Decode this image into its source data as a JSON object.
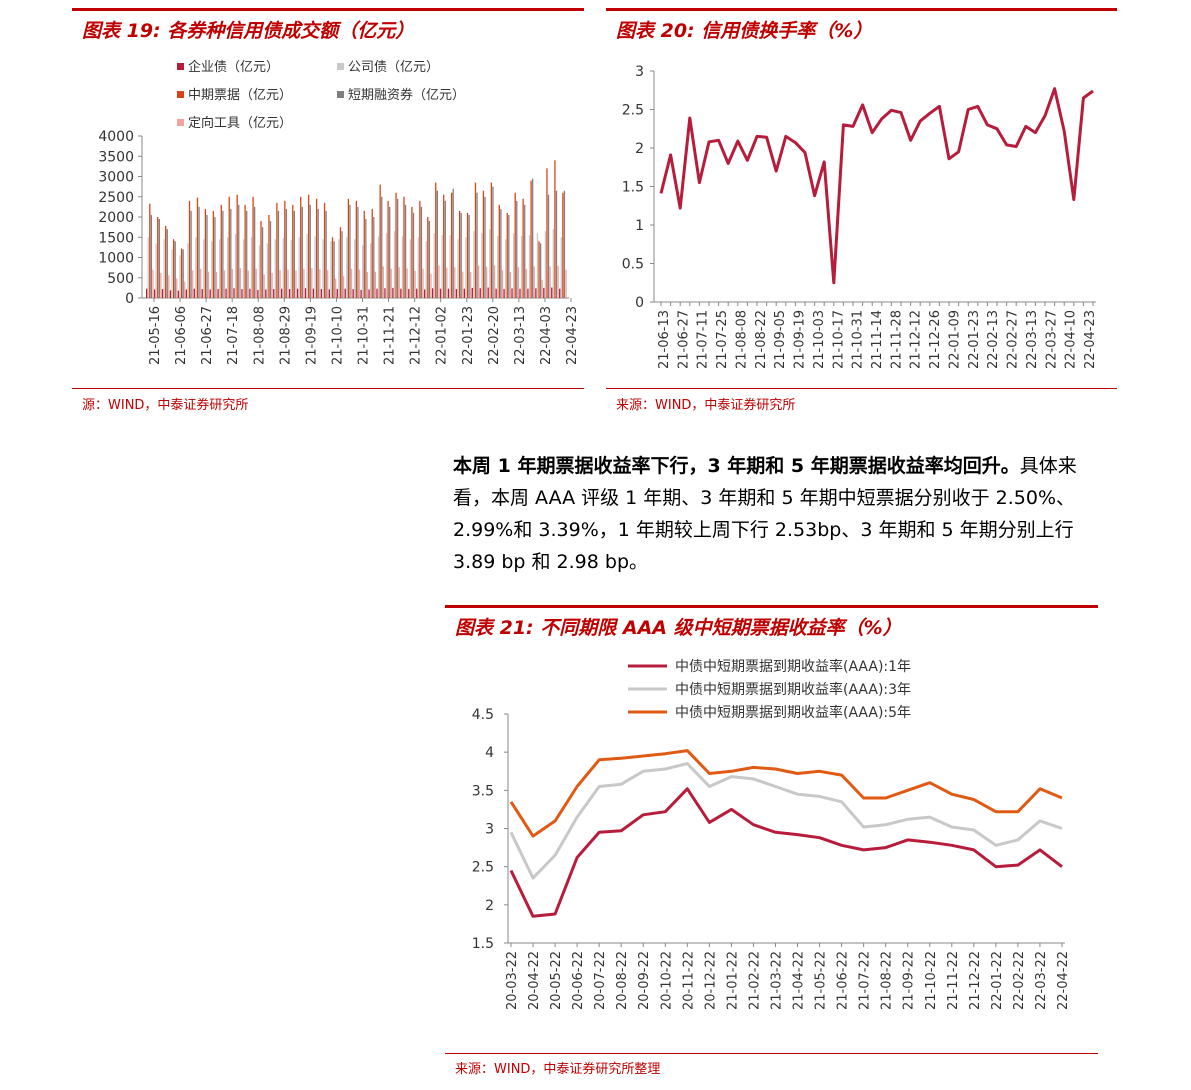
{
  "charts": [
    {
      "title": "图表 19:  各券种信用债成交额（亿元）",
      "source": "源：WIND，中泰证券研究所",
      "chart_data": {
        "type": "bar",
        "title": "图表 19:  各券种信用债成交额（亿元）",
        "ylim": [
          0,
          4000
        ],
        "yticks": [
          0,
          500,
          1000,
          1500,
          2000,
          2500,
          3000,
          3500,
          4000
        ],
        "tick_labels_x": [
          "21-05-16",
          "21-06-06",
          "21-06-27",
          "21-07-18",
          "21-08-08",
          "21-08-29",
          "21-09-19",
          "21-10-10",
          "21-10-31",
          "21-11-21",
          "21-12-12",
          "22-01-02",
          "22-01-23",
          "22-02-20",
          "22-03-13",
          "22-04-03",
          "22-04-23"
        ],
        "legend": [
          "企业债（亿元）",
          "公司债（亿元）",
          "中期票据（亿元）",
          "短期融资券（亿元）",
          "定向工具（亿元）"
        ],
        "colors": [
          "#b71c3b",
          "#c8c8c8",
          "#d84315",
          "#7f7f7f",
          "#f4a39a"
        ],
        "series": [
          {
            "name": "企业债（亿元）",
            "values": [
              230,
              210,
              220,
              190,
              180,
              210,
              230,
              220,
              210,
              220,
              230,
              240,
              220,
              230,
              200,
              210,
              220,
              230,
              220,
              230,
              240,
              230,
              220,
              210,
              220,
              230,
              220,
              200,
              210,
              230,
              240,
              250,
              230,
              220,
              230,
              210,
              240,
              230,
              230,
              220,
              230,
              250,
              240,
              260,
              230,
              220,
              240,
              230,
              230,
              240,
              250,
              260,
              230
            ]
          },
          {
            "name": "公司债（亿元）",
            "values": [
              1500,
              1350,
              1450,
              1200,
              1050,
              1350,
              1500,
              1450,
              1400,
              1450,
              1500,
              1580,
              1450,
              1500,
              1300,
              1350,
              1450,
              1480,
              1430,
              1500,
              1580,
              1520,
              1450,
              1400,
              1450,
              1500,
              1450,
              1300,
              1350,
              1520,
              1600,
              1650,
              1520,
              1450,
              1500,
              1400,
              1600,
              1550,
              1550,
              1450,
              1500,
              1650,
              1600,
              1700,
              1530,
              1450,
              1600,
              1530,
              1550,
              1600,
              1650,
              1700,
              1500
            ]
          },
          {
            "name": "中期票据（亿元）",
            "values": [
              2330,
              2000,
              1780,
              1450,
              1220,
              2400,
              2480,
              2200,
              2150,
              2300,
              2500,
              2550,
              2300,
              2500,
              1900,
              2050,
              2350,
              2400,
              2300,
              2500,
              2550,
              2450,
              2350,
              1500,
              1750,
              2450,
              2400,
              2150,
              2200,
              2800,
              2400,
              2600,
              2500,
              2250,
              2400,
              2000,
              2850,
              2550,
              2600,
              2150,
              2100,
              2850,
              2650,
              2850,
              2300,
              2100,
              2600,
              2450,
              2900,
              1400,
              3200,
              3400,
              2600
            ]
          },
          {
            "name": "短期融资券（亿元）",
            "values": [
              2050,
              1950,
              1700,
              1400,
              1200,
              2150,
              2250,
              2050,
              2000,
              2150,
              2200,
              2300,
              2150,
              2250,
              1750,
              1900,
              2150,
              2200,
              2150,
              2250,
              2300,
              2200,
              2150,
              1400,
              1650,
              2300,
              2250,
              1950,
              2000,
              2500,
              2250,
              2450,
              2300,
              2100,
              2250,
              1900,
              2650,
              2400,
              2700,
              2100,
              2050,
              2600,
              2500,
              2750,
              2200,
              2050,
              2400,
              2300,
              2950,
              1350,
              2550,
              2650,
              2650
            ]
          },
          {
            "name": "定向工具（亿元）",
            "values": [
              700,
              620,
              560,
              480,
              400,
              680,
              720,
              650,
              640,
              680,
              720,
              740,
              680,
              720,
              580,
              620,
              690,
              700,
              680,
              720,
              740,
              710,
              690,
              480,
              540,
              720,
              700,
              640,
              650,
              780,
              720,
              760,
              730,
              670,
              720,
              600,
              800,
              750,
              760,
              650,
              640,
              800,
              770,
              810,
              690,
              640,
              760,
              720,
              780,
              450,
              780,
              800,
              700
            ]
          }
        ]
      }
    },
    {
      "title": "图表 20:  信用债换手率（%）",
      "source": "来源：WIND，中泰证券研究所",
      "chart_data": {
        "type": "line",
        "title": "图表 20:  信用债换手率（%）",
        "ylim": [
          0,
          3
        ],
        "yticks": [
          0,
          0.5,
          1,
          1.5,
          2,
          2.5,
          3
        ],
        "tick_labels_x": [
          "21-06-13",
          "21-06-27",
          "21-07-11",
          "21-07-25",
          "21-08-08",
          "21-08-22",
          "21-09-05",
          "21-09-19",
          "21-10-03",
          "21-10-17",
          "21-10-31",
          "21-11-14",
          "21-11-28",
          "21-12-12",
          "21-12-26",
          "22-01-09",
          "22-01-23",
          "22-02-13",
          "22-02-27",
          "22-03-13",
          "22-03-27",
          "22-04-10",
          "22-04-23"
        ],
        "color": "#b71c3b",
        "values": [
          1.41,
          1.91,
          1.22,
          2.39,
          1.55,
          2.08,
          2.1,
          1.8,
          2.09,
          1.84,
          2.15,
          2.14,
          1.7,
          2.15,
          2.07,
          1.94,
          1.38,
          1.82,
          0.25,
          2.3,
          2.28,
          2.56,
          2.2,
          2.38,
          2.49,
          2.46,
          2.1,
          2.35,
          2.45,
          2.54,
          1.86,
          1.95,
          2.5,
          2.54,
          2.3,
          2.25,
          2.04,
          2.02,
          2.28,
          2.2,
          2.42,
          2.77,
          2.22,
          1.33,
          2.65,
          2.74
        ]
      }
    },
    {
      "title": "图表 21:  不同期限 AAA 级中短期票据收益率（%）",
      "source": "来源：WIND，中泰证券研究所整理",
      "chart_data": {
        "type": "line",
        "title": "图表 21:  不同期限 AAA 级中短期票据收益率（%）",
        "ylim": [
          1.5,
          4.5
        ],
        "yticks": [
          1.5,
          2,
          2.5,
          3,
          3.5,
          4,
          4.5
        ],
        "x": [
          "20-03-22",
          "20-04-22",
          "20-05-22",
          "20-06-22",
          "20-07-22",
          "20-08-22",
          "20-09-22",
          "20-10-22",
          "20-11-22",
          "20-12-22",
          "21-01-22",
          "21-02-22",
          "21-03-22",
          "21-04-22",
          "21-05-22",
          "21-06-22",
          "21-07-22",
          "21-08-22",
          "21-09-22",
          "21-10-22",
          "21-11-22",
          "21-12-22",
          "22-01-22",
          "22-02-22",
          "22-03-22",
          "22-04-22"
        ],
        "series": [
          {
            "name": "中债中短期票据到期收益率(AAA):1年",
            "color": "#b71c3b",
            "values": [
              2.45,
              1.85,
              1.88,
              2.62,
              2.95,
              2.97,
              3.18,
              3.22,
              3.52,
              3.08,
              3.25,
              3.05,
              2.95,
              2.92,
              2.88,
              2.78,
              2.72,
              2.75,
              2.85,
              2.82,
              2.78,
              2.72,
              2.5,
              2.52,
              2.72,
              2.5
            ]
          },
          {
            "name": "中债中短期票据到期收益率(AAA):3年",
            "color": "#c8c8c8",
            "values": [
              2.95,
              2.35,
              2.65,
              3.15,
              3.55,
              3.58,
              3.75,
              3.78,
              3.85,
              3.55,
              3.68,
              3.65,
              3.55,
              3.45,
              3.42,
              3.35,
              3.02,
              3.05,
              3.12,
              3.15,
              3.02,
              2.98,
              2.78,
              2.85,
              3.1,
              3.0
            ]
          },
          {
            "name": "中债中短期票据到期收益率(AAA):5年",
            "color": "#e05a14",
            "values": [
              3.35,
              2.9,
              3.1,
              3.55,
              3.9,
              3.92,
              3.95,
              3.98,
              4.02,
              3.72,
              3.75,
              3.8,
              3.78,
              3.72,
              3.75,
              3.7,
              3.4,
              3.4,
              3.5,
              3.6,
              3.45,
              3.38,
              3.22,
              3.22,
              3.52,
              3.4
            ]
          }
        ]
      }
    }
  ],
  "paragraph": {
    "lead": "本周 1 年期票据收益率下行，3 年期和 5 年期票据收益率均回升。",
    "body": "具体来看，本周 AAA 评级 1 年期、3 年期和 5 年期中短票据分别收于 2.50%、2.99%和 3.39%，1 年期较上周下行 2.53bp、3 年期和 5 年期分别上行 3.89 bp 和 2.98 bp。"
  }
}
